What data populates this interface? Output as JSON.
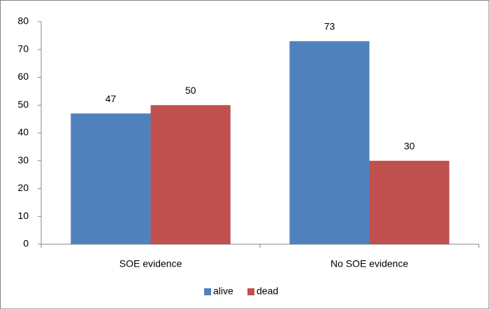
{
  "chart_data": {
    "type": "bar",
    "categories": [
      "SOE evidence",
      "No SOE evidence"
    ],
    "series": [
      {
        "name": "alive",
        "color": "#4f81bd",
        "values": [
          47,
          73
        ]
      },
      {
        "name": "dead",
        "color": "#c0504d",
        "values": [
          50,
          30
        ]
      }
    ],
    "ylim": [
      0,
      80
    ],
    "yticks": [
      0,
      10,
      20,
      30,
      40,
      50,
      60,
      70,
      80
    ],
    "grid": false,
    "legend": "bottom"
  }
}
